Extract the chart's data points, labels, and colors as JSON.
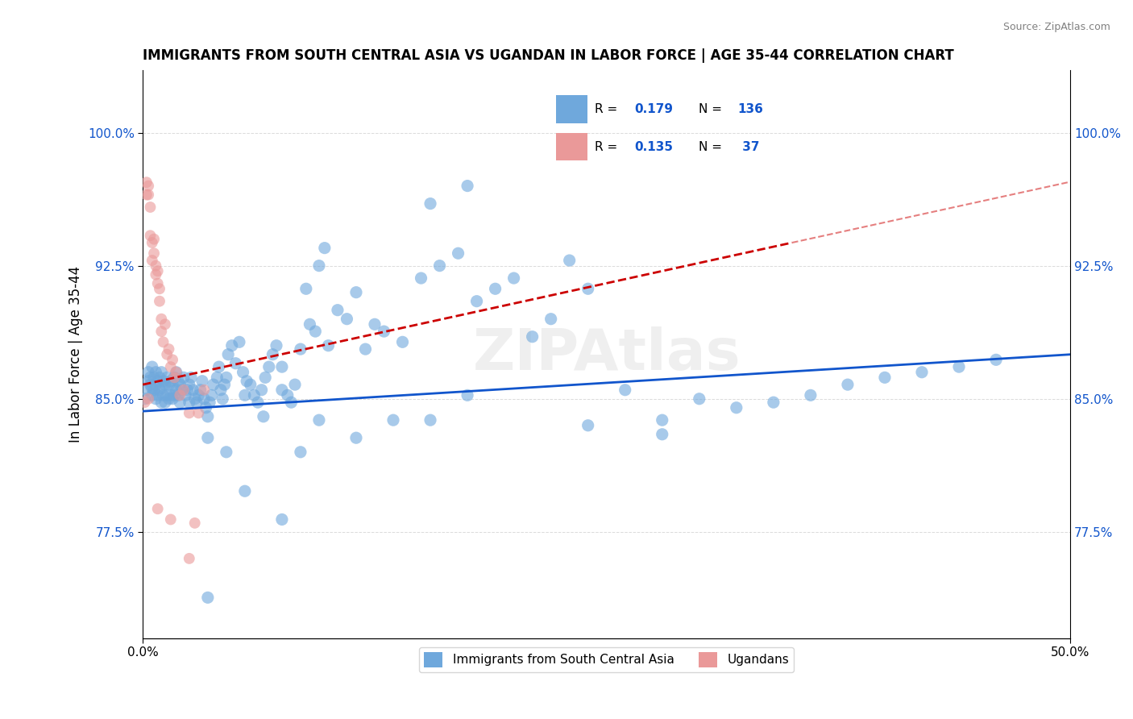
{
  "title": "IMMIGRANTS FROM SOUTH CENTRAL ASIA VS UGANDAN IN LABOR FORCE | AGE 35-44 CORRELATION CHART",
  "source": "Source: ZipAtlas.com",
  "xlabel": "",
  "ylabel": "In Labor Force | Age 35-44",
  "xlim": [
    0.0,
    0.5
  ],
  "ylim": [
    0.715,
    1.035
  ],
  "yticks": [
    0.775,
    0.85,
    0.925,
    1.0
  ],
  "ytick_labels": [
    "77.5%",
    "85.0%",
    "92.5%",
    "100.0%"
  ],
  "xticks": [
    0.0,
    0.1,
    0.2,
    0.3,
    0.4,
    0.5
  ],
  "xtick_labels": [
    "0.0%",
    "",
    "",
    "",
    "",
    "50.0%"
  ],
  "legend_r1": "R = 0.179",
  "legend_n1": "N = 136",
  "legend_r2": "R = 0.135",
  "legend_n2": "N =  37",
  "blue_color": "#6fa8dc",
  "pink_color": "#ea9999",
  "trend_blue": "#1155cc",
  "trend_pink": "#cc0000",
  "watermark": "ZIPAtlas",
  "blue_scatter_x": [
    0.001,
    0.002,
    0.003,
    0.003,
    0.004,
    0.004,
    0.005,
    0.005,
    0.005,
    0.006,
    0.006,
    0.007,
    0.007,
    0.007,
    0.008,
    0.008,
    0.009,
    0.009,
    0.01,
    0.01,
    0.01,
    0.011,
    0.011,
    0.012,
    0.012,
    0.013,
    0.013,
    0.014,
    0.014,
    0.015,
    0.015,
    0.016,
    0.016,
    0.017,
    0.017,
    0.018,
    0.018,
    0.019,
    0.019,
    0.02,
    0.02,
    0.021,
    0.022,
    0.023,
    0.024,
    0.025,
    0.025,
    0.026,
    0.027,
    0.028,
    0.029,
    0.03,
    0.031,
    0.032,
    0.033,
    0.034,
    0.035,
    0.036,
    0.037,
    0.038,
    0.04,
    0.041,
    0.042,
    0.043,
    0.044,
    0.045,
    0.046,
    0.048,
    0.05,
    0.052,
    0.054,
    0.056,
    0.058,
    0.06,
    0.062,
    0.064,
    0.066,
    0.068,
    0.07,
    0.072,
    0.075,
    0.078,
    0.08,
    0.082,
    0.085,
    0.088,
    0.09,
    0.093,
    0.095,
    0.098,
    0.1,
    0.105,
    0.11,
    0.115,
    0.12,
    0.125,
    0.13,
    0.14,
    0.15,
    0.16,
    0.17,
    0.18,
    0.19,
    0.2,
    0.21,
    0.22,
    0.23,
    0.24,
    0.26,
    0.28,
    0.3,
    0.32,
    0.34,
    0.36,
    0.38,
    0.4,
    0.42,
    0.44,
    0.46,
    0.28,
    0.035,
    0.055,
    0.075,
    0.095,
    0.115,
    0.135,
    0.155,
    0.175,
    0.035,
    0.045,
    0.055,
    0.065,
    0.075,
    0.085,
    0.155,
    0.175,
    0.24
  ],
  "blue_scatter_y": [
    0.85,
    0.855,
    0.86,
    0.865,
    0.858,
    0.862,
    0.852,
    0.856,
    0.868,
    0.855,
    0.862,
    0.85,
    0.858,
    0.865,
    0.852,
    0.86,
    0.855,
    0.862,
    0.848,
    0.856,
    0.865,
    0.852,
    0.86,
    0.848,
    0.858,
    0.852,
    0.862,
    0.85,
    0.858,
    0.852,
    0.86,
    0.85,
    0.858,
    0.852,
    0.862,
    0.855,
    0.865,
    0.852,
    0.86,
    0.848,
    0.858,
    0.855,
    0.862,
    0.852,
    0.855,
    0.848,
    0.858,
    0.862,
    0.855,
    0.85,
    0.848,
    0.852,
    0.855,
    0.86,
    0.85,
    0.845,
    0.84,
    0.848,
    0.852,
    0.858,
    0.862,
    0.868,
    0.855,
    0.85,
    0.858,
    0.862,
    0.875,
    0.88,
    0.87,
    0.882,
    0.865,
    0.86,
    0.858,
    0.852,
    0.848,
    0.855,
    0.862,
    0.868,
    0.875,
    0.88,
    0.868,
    0.852,
    0.848,
    0.858,
    0.878,
    0.912,
    0.892,
    0.888,
    0.925,
    0.935,
    0.88,
    0.9,
    0.895,
    0.91,
    0.878,
    0.892,
    0.888,
    0.882,
    0.918,
    0.925,
    0.932,
    0.905,
    0.912,
    0.918,
    0.885,
    0.895,
    0.928,
    0.912,
    0.855,
    0.83,
    0.85,
    0.845,
    0.848,
    0.852,
    0.858,
    0.862,
    0.865,
    0.868,
    0.872,
    0.838,
    0.828,
    0.798,
    0.782,
    0.838,
    0.828,
    0.838,
    0.838,
    0.852,
    0.738,
    0.82,
    0.852,
    0.84,
    0.855,
    0.82,
    0.96,
    0.97,
    0.835
  ],
  "pink_scatter_x": [
    0.001,
    0.002,
    0.002,
    0.003,
    0.003,
    0.004,
    0.004,
    0.005,
    0.005,
    0.006,
    0.006,
    0.007,
    0.007,
    0.008,
    0.008,
    0.009,
    0.009,
    0.01,
    0.01,
    0.011,
    0.012,
    0.013,
    0.014,
    0.015,
    0.016,
    0.017,
    0.018,
    0.02,
    0.022,
    0.025,
    0.028,
    0.03,
    0.033,
    0.003,
    0.008,
    0.015,
    0.025
  ],
  "pink_scatter_y": [
    0.848,
    0.965,
    0.972,
    0.965,
    0.97,
    0.958,
    0.942,
    0.938,
    0.928,
    0.932,
    0.94,
    0.92,
    0.925,
    0.915,
    0.922,
    0.905,
    0.912,
    0.888,
    0.895,
    0.882,
    0.892,
    0.875,
    0.878,
    0.868,
    0.872,
    0.862,
    0.865,
    0.852,
    0.855,
    0.842,
    0.78,
    0.842,
    0.855,
    0.85,
    0.788,
    0.782,
    0.76
  ],
  "blue_trend_x": [
    0.0,
    0.5
  ],
  "blue_trend_y": [
    0.843,
    0.875
  ],
  "pink_trend_x": [
    0.0,
    0.35
  ],
  "pink_trend_y": [
    0.858,
    0.938
  ]
}
